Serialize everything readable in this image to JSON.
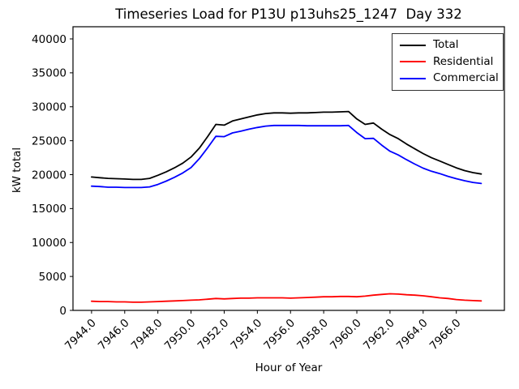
{
  "window": {
    "title": "Timeseries Load for P13U p13uhs25_1247  Day 332"
  },
  "chart_data": {
    "type": "line",
    "title": "Timeseries Load for P13U p13uhs25_1247  Day 332",
    "xlabel": "Hour of Year",
    "ylabel": "kW total",
    "grid": false,
    "legend_position": "upper right",
    "xlim": [
      7942.88,
      7968.9
    ],
    "ylim": [
      0,
      41790
    ],
    "x": [
      7944.0,
      7944.5,
      7945.0,
      7945.5,
      7946.0,
      7946.5,
      7947.0,
      7947.5,
      7948.0,
      7948.5,
      7949.0,
      7949.5,
      7950.0,
      7950.5,
      7951.0,
      7951.5,
      7952.0,
      7952.5,
      7953.0,
      7953.5,
      7954.0,
      7954.5,
      7955.0,
      7955.5,
      7956.0,
      7956.5,
      7957.0,
      7957.5,
      7958.0,
      7958.5,
      7959.0,
      7959.5,
      7960.0,
      7960.5,
      7961.0,
      7961.5,
      7962.0,
      7962.5,
      7963.0,
      7963.5,
      7964.0,
      7964.5,
      7965.0,
      7965.5,
      7966.0,
      7966.5,
      7967.0,
      7967.5
    ],
    "series": [
      {
        "name": "Total",
        "color": "#000000",
        "values": [
          19650,
          19550,
          19450,
          19400,
          19350,
          19300,
          19300,
          19450,
          19900,
          20400,
          21000,
          21700,
          22600,
          23900,
          25600,
          27400,
          27300,
          27900,
          28200,
          28500,
          28800,
          29000,
          29100,
          29100,
          29050,
          29100,
          29100,
          29150,
          29200,
          29200,
          29250,
          29300,
          28200,
          27400,
          27600,
          26700,
          25900,
          25300,
          24500,
          23800,
          23100,
          22500,
          22000,
          21500,
          21000,
          20600,
          20300,
          20100
        ]
      },
      {
        "name": "Residential",
        "color": "#ff0000",
        "values": [
          1350,
          1300,
          1300,
          1250,
          1250,
          1200,
          1200,
          1250,
          1300,
          1350,
          1400,
          1450,
          1500,
          1550,
          1650,
          1750,
          1700,
          1750,
          1800,
          1800,
          1850,
          1850,
          1850,
          1850,
          1800,
          1850,
          1900,
          1950,
          2000,
          2000,
          2050,
          2050,
          2000,
          2100,
          2250,
          2350,
          2450,
          2400,
          2300,
          2250,
          2150,
          2000,
          1850,
          1750,
          1600,
          1500,
          1450,
          1400
        ]
      },
      {
        "name": "Commercial",
        "color": "#0000ff",
        "values": [
          18300,
          18250,
          18150,
          18150,
          18100,
          18100,
          18100,
          18200,
          18550,
          19050,
          19600,
          20250,
          21050,
          22350,
          23950,
          25650,
          25600,
          26150,
          26400,
          26700,
          26950,
          27150,
          27250,
          27250,
          27250,
          27250,
          27200,
          27200,
          27200,
          27200,
          27200,
          27250,
          26200,
          25300,
          25350,
          24350,
          23450,
          22900,
          22200,
          21550,
          20950,
          20500,
          20150,
          19750,
          19400,
          19100,
          18850,
          18700
        ]
      }
    ],
    "xticks": {
      "values": [
        7944,
        7946,
        7948,
        7950,
        7952,
        7954,
        7956,
        7958,
        7960,
        7962,
        7964,
        7966
      ],
      "labels": [
        "7944.0",
        "7946.0",
        "7948.0",
        "7950.0",
        "7952.0",
        "7954.0",
        "7956.0",
        "7958.0",
        "7960.0",
        "7962.0",
        "7964.0",
        "7966.0"
      ]
    },
    "yticks": {
      "values": [
        0,
        5000,
        10000,
        15000,
        20000,
        25000,
        30000,
        35000,
        40000
      ],
      "labels": [
        "0",
        "5000",
        "10000",
        "15000",
        "20000",
        "25000",
        "30000",
        "35000",
        "40000"
      ]
    }
  }
}
